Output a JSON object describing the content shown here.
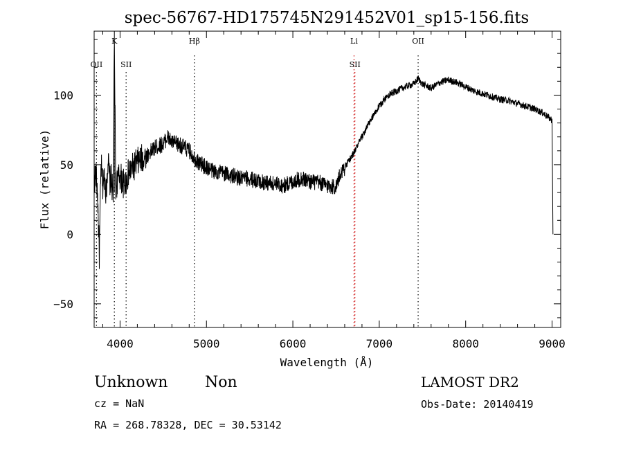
{
  "chart_data": {
    "type": "line",
    "title": "spec-56767-HD175745N291452V01_sp15-156.fits",
    "xlabel": "Wavelength (Å)",
    "ylabel": "Flux (relative)",
    "xlim": [
      3700,
      9100
    ],
    "ylim": [
      -67,
      146
    ],
    "x_ticks": [
      4000,
      5000,
      6000,
      7000,
      8000,
      9000
    ],
    "x_tick_labels": [
      "4000",
      "5000",
      "6000",
      "7000",
      "8000",
      "9000"
    ],
    "y_ticks": [
      -50,
      0,
      50,
      100
    ],
    "y_tick_labels": [
      "−50",
      "0",
      "50",
      "100"
    ],
    "line_markers": [
      {
        "label": "OII",
        "wavelength": 3727,
        "row": 2,
        "color": "#000000"
      },
      {
        "label": "K",
        "wavelength": 3934,
        "row": 1,
        "color": "#000000"
      },
      {
        "label": "SII",
        "wavelength": 4070,
        "row": 2,
        "color": "#000000"
      },
      {
        "label": "Hβ",
        "wavelength": 4861,
        "row": 1,
        "color": "#000000"
      },
      {
        "label": "Li",
        "wavelength": 6708,
        "row": 1,
        "color": "#cc0000"
      },
      {
        "label": "SII",
        "wavelength": 6718,
        "row": 2,
        "color": "#cc0000"
      },
      {
        "label": "OII",
        "wavelength": 7450,
        "row": 1,
        "color": "#000000"
      }
    ],
    "series": [
      {
        "color": "#000000",
        "x": [
          3700,
          3720,
          3740,
          3760,
          3780,
          3800,
          3820,
          3840,
          3860,
          3880,
          3900,
          3920,
          3934,
          3950,
          3980,
          4000,
          4050,
          4100,
          4150,
          4200,
          4300,
          4400,
          4500,
          4550,
          4600,
          4700,
          4800,
          4900,
          5000,
          5100,
          5200,
          5300,
          5400,
          5500,
          5600,
          5700,
          5800,
          5900,
          6000,
          6100,
          6200,
          6300,
          6400,
          6500,
          6560,
          6600,
          6700,
          6800,
          6900,
          7000,
          7100,
          7200,
          7300,
          7400,
          7450,
          7500,
          7600,
          7700,
          7800,
          7900,
          8000,
          8100,
          8200,
          8300,
          8400,
          8500,
          8600,
          8700,
          8800,
          8900,
          9000,
          9010
        ],
        "y": [
          38,
          44,
          28,
          -15,
          50,
          35,
          42,
          30,
          55,
          38,
          40,
          26,
          138,
          35,
          40,
          42,
          35,
          44,
          48,
          52,
          56,
          62,
          65,
          70,
          66,
          64,
          60,
          52,
          48,
          45,
          44,
          42,
          40,
          40,
          38,
          37,
          36,
          35,
          38,
          40,
          38,
          37,
          35,
          34,
          45,
          48,
          58,
          70,
          82,
          92,
          100,
          103,
          106,
          108,
          112,
          108,
          105,
          109,
          111,
          109,
          106,
          103,
          101,
          99,
          97,
          96,
          94,
          92,
          90,
          87,
          82,
          0
        ]
      }
    ],
    "footer": {
      "left_line1a": "Unknown",
      "left_line1b": "Non",
      "left_line2": "cz = NaN",
      "left_line3": "RA = 268.78328, DEC =  30.53142",
      "right_line1": "LAMOST DR2",
      "right_line2": "Obs-Date: 20140419"
    }
  }
}
